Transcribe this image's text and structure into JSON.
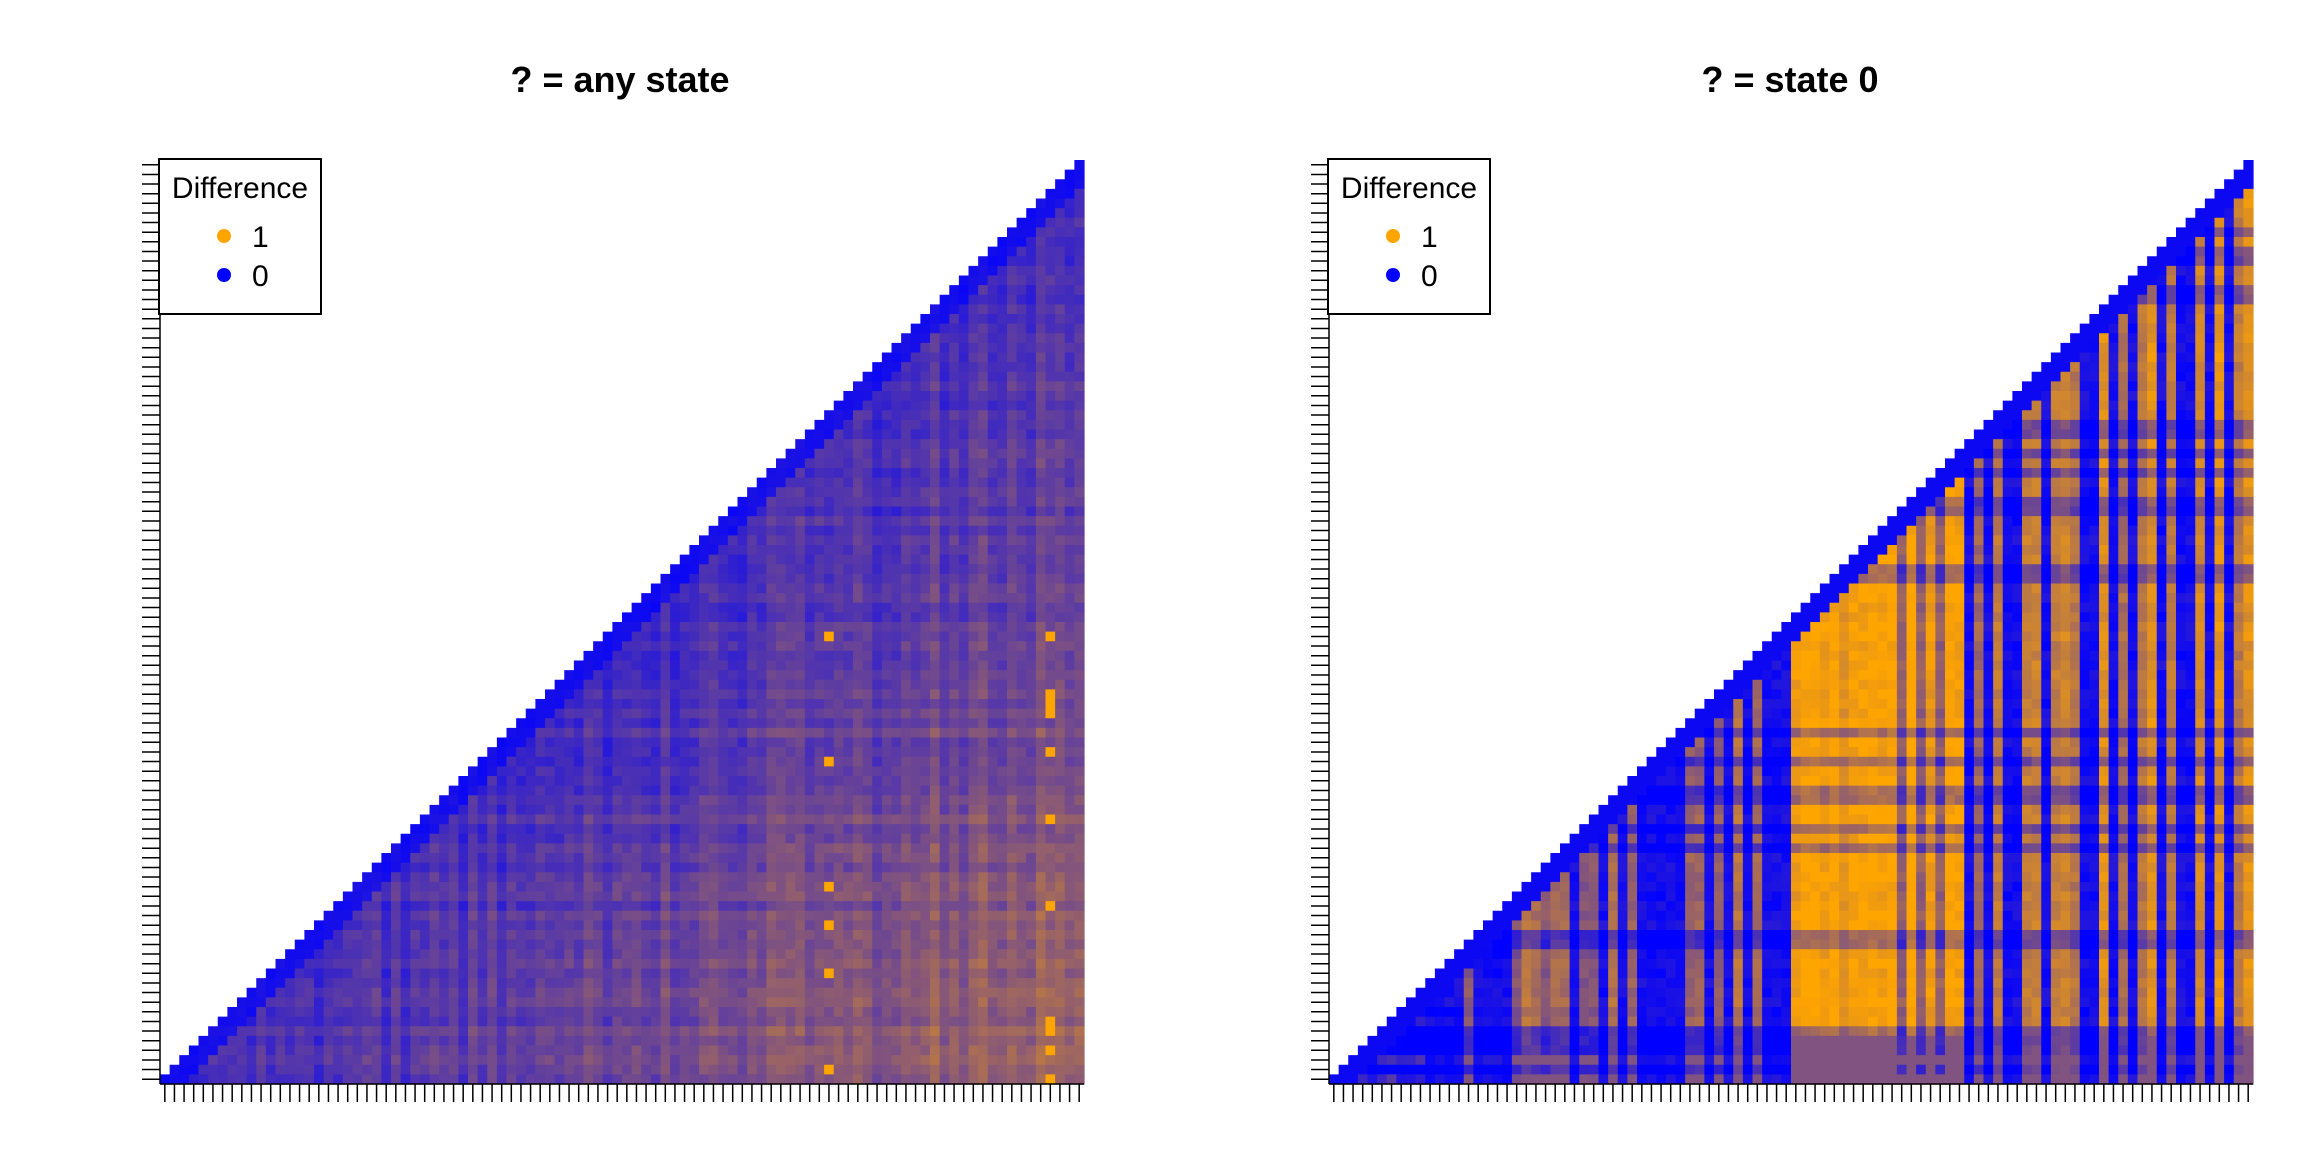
{
  "colors": {
    "high": "#FFA500",
    "low": "#0000FF",
    "background": "#FFFFFF"
  },
  "chart_data": [
    {
      "type": "heatmap",
      "title": "? = any state",
      "shape": "lower-triangle",
      "n": 96,
      "value_range": [
        0,
        1
      ],
      "tick_labels_shown": false,
      "legend": {
        "title": "Difference",
        "placement": "top-left",
        "items": [
          {
            "label": "1",
            "color": "#FFA500"
          },
          {
            "label": "0",
            "color": "#0000FF"
          }
        ]
      },
      "pattern": "mostly 0-0.45 (blue to purple-brown); diagonal strongest blue; isolated orange (≈1) spots in columns ≈69 and ≈92",
      "hot_columns": [
        69,
        92
      ],
      "mean_level": 0.3
    },
    {
      "type": "heatmap",
      "title": "? = state 0",
      "shape": "lower-triangle",
      "n": 96,
      "value_range": [
        0,
        1
      ],
      "tick_labels_shown": false,
      "legend": {
        "title": "Difference",
        "placement": "top-left",
        "items": [
          {
            "label": "1",
            "color": "#FFA500"
          },
          {
            "label": "0",
            "color": "#0000FF"
          }
        ]
      },
      "pattern": "wide orange band in columns ≈48-66 and towards upper right; blue vertical stripes in columns ≈30-36, 70-90; diagonal blue",
      "orange_band": [
        48,
        66
      ],
      "mean_level": 0.55
    }
  ]
}
